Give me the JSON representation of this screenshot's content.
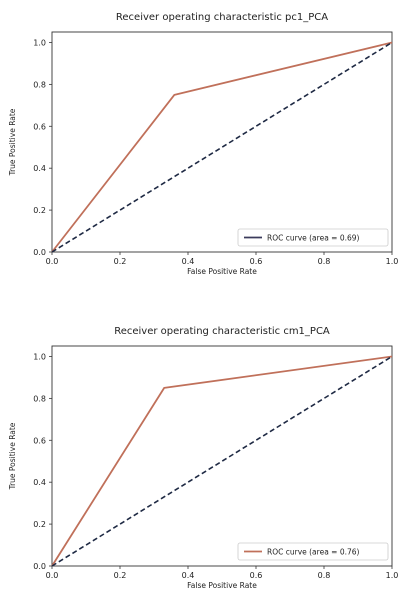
{
  "chart_data": [
    {
      "type": "line",
      "title": "Receiver operating characteristic pc1_PCA",
      "xlabel": "False Positive Rate",
      "ylabel": "True Positive Rate",
      "xlim": [
        0,
        1
      ],
      "ylim": [
        0,
        1.05
      ],
      "xticks": [
        "0.0",
        "0.2",
        "0.4",
        "0.6",
        "0.8",
        "1.0"
      ],
      "yticks": [
        "0.0",
        "0.2",
        "0.4",
        "0.6",
        "0.8",
        "1.0"
      ],
      "grid": false,
      "legend_position": "lower-right",
      "series": [
        {
          "name": "ROC curve (area = 0.69)",
          "x": [
            0.0,
            0.36,
            1.0
          ],
          "y": [
            0.0,
            0.75,
            1.0
          ],
          "color": "#c0705a",
          "legend_color": "#3b3b5c"
        },
        {
          "x": [
            0.0,
            1.0
          ],
          "y": [
            0.0,
            1.0
          ],
          "color": "#1f2a44",
          "dashed": true
        }
      ]
    },
    {
      "type": "line",
      "title": "Receiver operating characteristic cm1_PCA",
      "xlabel": "False Positive Rate",
      "ylabel": "True Positive Rate",
      "xlim": [
        0,
        1
      ],
      "ylim": [
        0,
        1.05
      ],
      "xticks": [
        "0.0",
        "0.2",
        "0.4",
        "0.6",
        "0.8",
        "1.0"
      ],
      "yticks": [
        "0.0",
        "0.2",
        "0.4",
        "0.6",
        "0.8",
        "1.0"
      ],
      "grid": false,
      "legend_position": "lower-right",
      "series": [
        {
          "name": "ROC curve (area = 0.76)",
          "x": [
            0.0,
            0.33,
            1.0
          ],
          "y": [
            0.0,
            0.85,
            1.0
          ],
          "color": "#c0705a",
          "legend_color": "#c0705a"
        },
        {
          "x": [
            0.0,
            1.0
          ],
          "y": [
            0.0,
            1.0
          ],
          "color": "#1f2a44",
          "dashed": true
        }
      ]
    }
  ]
}
